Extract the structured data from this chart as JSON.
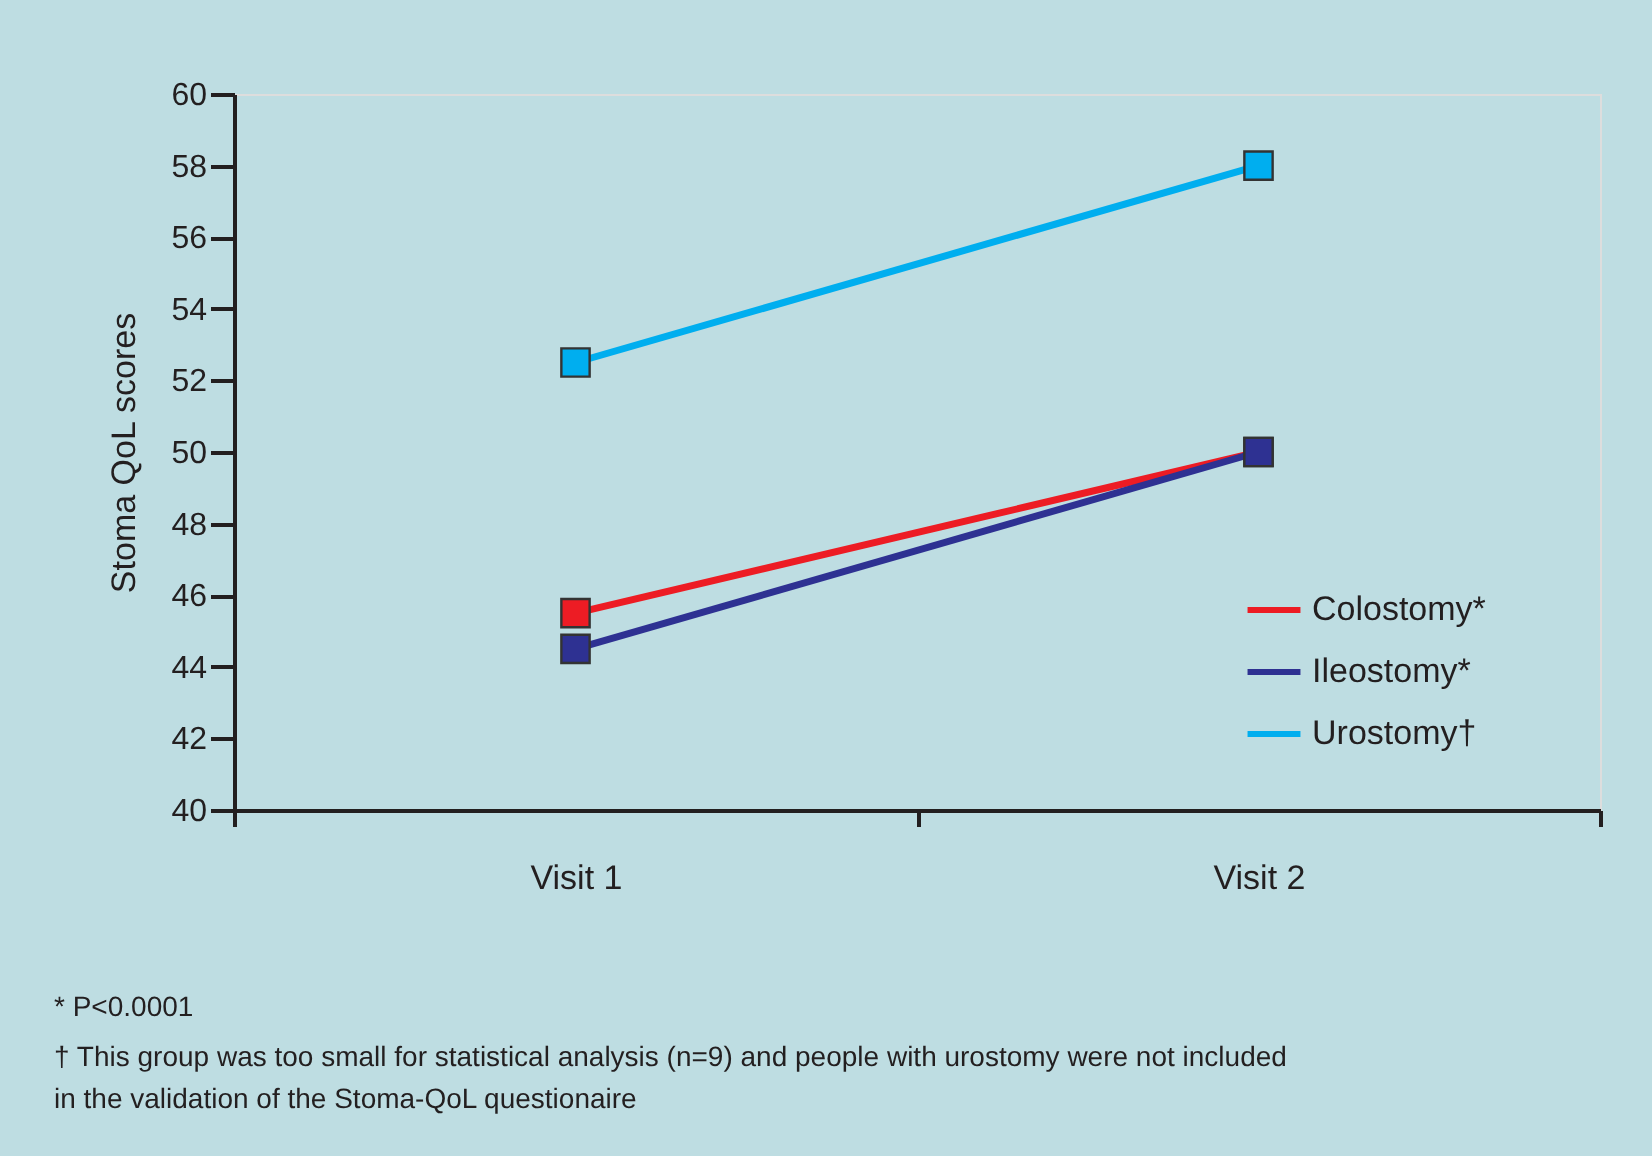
{
  "chart_data": {
    "type": "line",
    "ylabel": "Stoma QoL scores",
    "categories": [
      "Visit 1",
      "Visit 2"
    ],
    "series": [
      {
        "name": "Colostomy*",
        "color": "#ed1c24",
        "values": [
          45.5,
          50
        ]
      },
      {
        "name": "Ileostomy*",
        "color": "#2e3192",
        "values": [
          44.5,
          50
        ]
      },
      {
        "name": "Urostomy†",
        "color": "#00aeef",
        "values": [
          52.5,
          58
        ]
      }
    ],
    "ylim": [
      40,
      60
    ],
    "yticks": [
      40,
      42,
      44,
      46,
      48,
      50,
      52,
      54,
      56,
      58,
      60
    ],
    "marker": "square",
    "line_style": "solid",
    "grid": false,
    "legend": "bottom right",
    "annotations": [
      "* P<0.0001",
      "† This group was too small for statistical analysis (n=9) and people with urostomy were not included in the validation of the Stoma-QoL questionaire"
    ]
  }
}
